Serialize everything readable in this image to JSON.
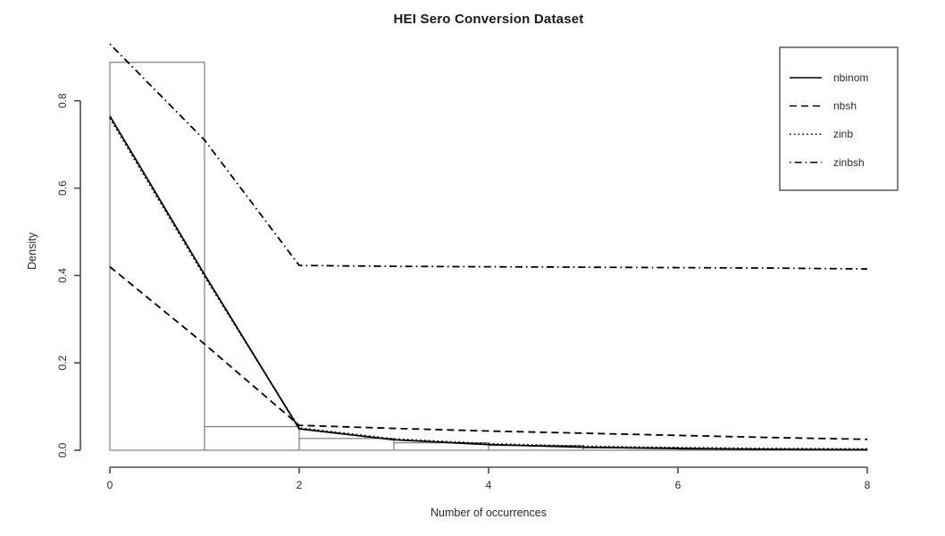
{
  "chart_data": {
    "type": "histogram+line",
    "title": "HEI Sero Conversion Dataset",
    "xlabel": "Number of occurrences",
    "ylabel": "Density",
    "xlim": [
      0,
      8
    ],
    "ylim": [
      0,
      0.9
    ],
    "x_ticks": [
      0,
      2,
      4,
      6,
      8
    ],
    "x_tick_labels": [
      "0",
      "2",
      "4",
      "6",
      "8"
    ],
    "y_ticks": [
      0.0,
      0.2,
      0.4,
      0.6,
      0.8
    ],
    "y_tick_labels": [
      "0.0",
      "0.2",
      "0.4",
      "0.6",
      "0.8"
    ],
    "grid": "off",
    "histogram": {
      "bin_width": 1,
      "bin_start": 0,
      "densities": [
        0.888,
        0.054,
        0.027,
        0.017,
        0.011,
        0.006,
        0.002,
        0.002
      ]
    },
    "x": [
      0,
      1,
      2,
      3,
      4,
      5,
      6,
      7,
      8
    ],
    "series": [
      {
        "name": "nbinom",
        "linetype": "solid",
        "values": [
          0.765,
          0.402,
          0.049,
          0.024,
          0.013,
          0.007,
          0.004,
          0.002,
          0.001
        ]
      },
      {
        "name": "nbsh",
        "linetype": "dashed",
        "values": [
          0.42,
          0.243,
          0.057,
          0.05,
          0.044,
          0.039,
          0.034,
          0.029,
          0.025
        ]
      },
      {
        "name": "zinb",
        "linetype": "dotted",
        "values": [
          0.76,
          0.398,
          0.051,
          0.026,
          0.015,
          0.009,
          0.006,
          0.004,
          0.003
        ]
      },
      {
        "name": "zinbsh",
        "linetype": "dashdot",
        "values": [
          0.93,
          0.71,
          0.423,
          0.421,
          0.42,
          0.419,
          0.418,
          0.417,
          0.415
        ]
      }
    ],
    "legend": {
      "position": "top-right",
      "entries": [
        "nbinom",
        "nbsh",
        "zinb",
        "zinbsh"
      ]
    },
    "colors": {
      "line": "#000000",
      "bar_border": "#808080",
      "bar_fill": "#ffffff",
      "axis": "#4d4d4d",
      "text": "#2b2b2b",
      "background": "#ffffff"
    }
  }
}
